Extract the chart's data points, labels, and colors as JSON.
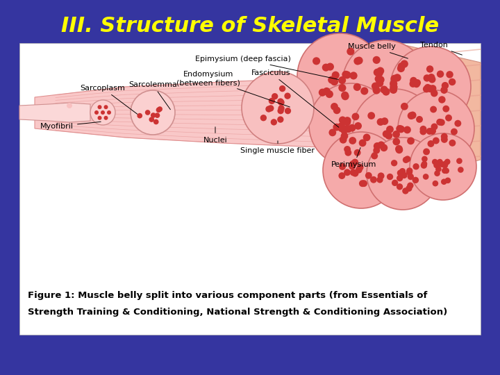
{
  "title": "III. Structure of Skeletal Muscle",
  "title_color": "#FFFF00",
  "title_fontsize": 22,
  "background_color": "#3535A0",
  "panel_bg": "#FFFFFF",
  "caption_line1": "Figure 1: Muscle belly split into various component parts (from Essentials of",
  "caption_line2": "Strength Training & Conditioning, National Strength & Conditioning Association)",
  "caption_fontsize": 9.5,
  "caption_color": "#000000",
  "muscle_pink": "#F4A8A8",
  "muscle_light": "#FBDADA",
  "muscle_mid": "#E07070",
  "muscle_dark": "#CC4444",
  "muscle_deep": "#B83030",
  "tendon_color": "#F5C8A0",
  "fiber_dot": "#CC3333"
}
